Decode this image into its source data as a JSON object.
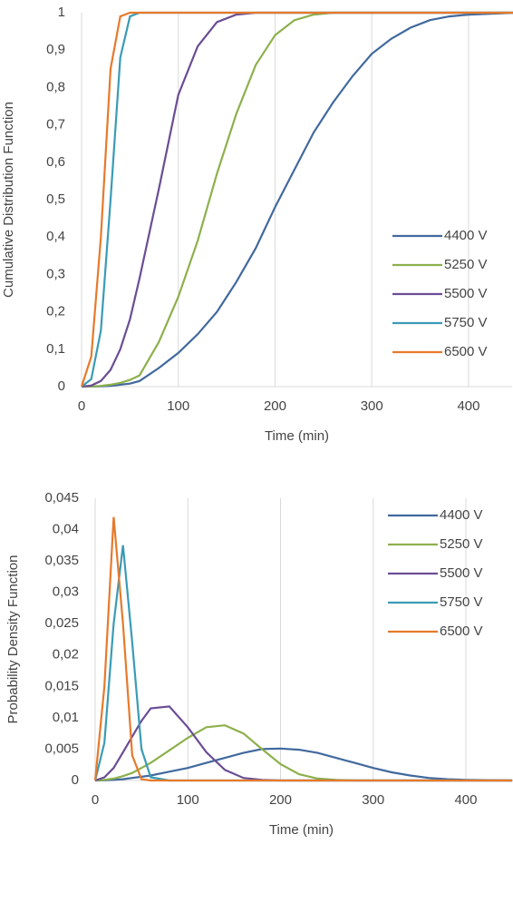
{
  "chart_data": [
    {
      "type": "line",
      "x_label": "Time (min)",
      "y_label": "Cumulative Distribution Function",
      "x": [
        0,
        10,
        20,
        30,
        40,
        50,
        60,
        80,
        100,
        120,
        140,
        160,
        180,
        200,
        220,
        240,
        260,
        280,
        300,
        320,
        340,
        360,
        380,
        400,
        450
      ],
      "series": [
        {
          "name": "4400 V",
          "color": "#41699e",
          "values": [
            0,
            0.0002,
            0.001,
            0.002,
            0.005,
            0.008,
            0.015,
            0.05,
            0.09,
            0.14,
            0.2,
            0.28,
            0.37,
            0.48,
            0.58,
            0.68,
            0.76,
            0.83,
            0.89,
            0.93,
            0.96,
            0.98,
            0.99,
            0.995,
            1
          ]
        },
        {
          "name": "5250 V",
          "color": "#8db04c",
          "values": [
            0,
            0.0005,
            0.002,
            0.005,
            0.01,
            0.018,
            0.03,
            0.12,
            0.24,
            0.39,
            0.57,
            0.73,
            0.86,
            0.94,
            0.98,
            0.995,
            1,
            1,
            1,
            1,
            1,
            1,
            1,
            1,
            1
          ]
        },
        {
          "name": "5500 V",
          "color": "#6b4d94",
          "values": [
            0,
            0.003,
            0.015,
            0.045,
            0.1,
            0.18,
            0.29,
            0.53,
            0.78,
            0.91,
            0.975,
            0.995,
            1,
            1,
            1,
            1,
            1,
            1,
            1,
            1,
            1,
            1,
            1,
            1,
            1
          ]
        },
        {
          "name": "5750 V",
          "color": "#3b9bb6",
          "values": [
            0,
            0.02,
            0.15,
            0.5,
            0.88,
            0.99,
            1,
            1,
            1,
            1,
            1,
            1,
            1,
            1,
            1,
            1,
            1,
            1,
            1,
            1,
            1,
            1,
            1,
            1,
            1
          ]
        },
        {
          "name": "6500 V",
          "color": "#e67a2c",
          "values": [
            0,
            0.08,
            0.4,
            0.85,
            0.99,
            1,
            1,
            1,
            1,
            1,
            1,
            1,
            1,
            1,
            1,
            1,
            1,
            1,
            1,
            1,
            1,
            1,
            1,
            1,
            1
          ]
        }
      ],
      "xlim": [
        0,
        445
      ],
      "xticks": [
        0,
        100,
        200,
        300,
        400
      ],
      "ylim": [
        0,
        1
      ],
      "yticks": [
        0,
        {
          "value": 0.1,
          "label": "0,1"
        },
        {
          "value": 0.2,
          "label": "0,2"
        },
        {
          "value": 0.3,
          "label": "0,3"
        },
        {
          "value": 0.4,
          "label": "0,4"
        },
        {
          "value": 0.5,
          "label": "0,5"
        },
        {
          "value": 0.6,
          "label": "0,6"
        },
        {
          "value": 0.7,
          "label": "0,7"
        },
        {
          "value": 0.8,
          "label": "0,8"
        },
        {
          "value": 0.9,
          "label": "0,9"
        },
        1
      ],
      "grid": "x",
      "legend": "lower right"
    },
    {
      "type": "line",
      "x_label": "Time (min)",
      "y_label": "Probability Density Function",
      "x": [
        0,
        10,
        20,
        30,
        40,
        50,
        60,
        80,
        100,
        120,
        140,
        160,
        180,
        200,
        220,
        240,
        260,
        280,
        300,
        320,
        340,
        360,
        380,
        400,
        450
      ],
      "series": [
        {
          "name": "4400 V",
          "color": "#41699e",
          "values": [
            0,
            3e-05,
            0.0001,
            0.0002,
            0.0004,
            0.0006,
            0.0008,
            0.0014,
            0.002,
            0.0028,
            0.0036,
            0.0044,
            0.005,
            0.0051,
            0.0049,
            0.0044,
            0.0036,
            0.0028,
            0.002,
            0.0013,
            0.0008,
            0.0004,
            0.0002,
            0.0001,
            0
          ]
        },
        {
          "name": "5250 V",
          "color": "#8db04c",
          "values": [
            0,
            0.0001,
            0.0003,
            0.0007,
            0.0012,
            0.002,
            0.0028,
            0.0048,
            0.0068,
            0.0085,
            0.0088,
            0.0075,
            0.005,
            0.0026,
            0.001,
            0.0003,
            0.0001,
            0,
            0,
            0,
            0,
            0,
            0,
            0,
            0
          ]
        },
        {
          "name": "5500 V",
          "color": "#6b4d94",
          "values": [
            0,
            0.0005,
            0.002,
            0.0045,
            0.007,
            0.0095,
            0.0115,
            0.0118,
            0.0085,
            0.0045,
            0.0017,
            0.0004,
            0.0001,
            0,
            0,
            0,
            0,
            0,
            0,
            0,
            0,
            0,
            0,
            0,
            0
          ]
        },
        {
          "name": "5750 V",
          "color": "#3b9bb6",
          "values": [
            0,
            0.006,
            0.025,
            0.0375,
            0.022,
            0.005,
            0.0005,
            0,
            0,
            0,
            0,
            0,
            0,
            0,
            0,
            0,
            0,
            0,
            0,
            0,
            0,
            0,
            0,
            0,
            0
          ]
        },
        {
          "name": "6500 V",
          "color": "#e67a2c",
          "values": [
            0,
            0.015,
            0.042,
            0.025,
            0.004,
            0.0002,
            0,
            0,
            0,
            0,
            0,
            0,
            0,
            0,
            0,
            0,
            0,
            0,
            0,
            0,
            0,
            0,
            0,
            0,
            0
          ]
        }
      ],
      "xlim": [
        0,
        445
      ],
      "xticks": [
        0,
        100,
        200,
        300,
        400
      ],
      "ylim": [
        0,
        0.045
      ],
      "yticks": [
        0,
        {
          "value": 0.005,
          "label": "0,005"
        },
        {
          "value": 0.01,
          "label": "0,01"
        },
        {
          "value": 0.015,
          "label": "0,015"
        },
        {
          "value": 0.02,
          "label": "0,02"
        },
        {
          "value": 0.025,
          "label": "0,025"
        },
        {
          "value": 0.03,
          "label": "0,03"
        },
        {
          "value": 0.035,
          "label": "0,035"
        },
        {
          "value": 0.04,
          "label": "0,04"
        },
        {
          "value": 0.045,
          "label": "0,045"
        }
      ],
      "grid": "x",
      "legend": "upper right"
    }
  ]
}
